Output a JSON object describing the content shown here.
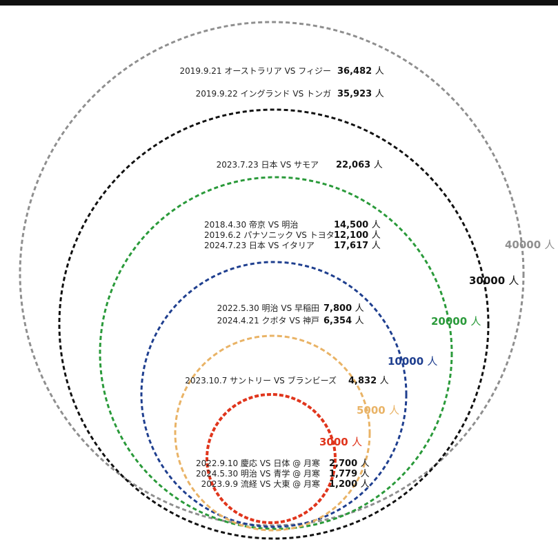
{
  "unit": "人",
  "rings": [
    {
      "label": "40000",
      "color": "#8f8f8f"
    },
    {
      "label": "30000",
      "color": "#111111"
    },
    {
      "label": "20000",
      "color": "#2a9a3a"
    },
    {
      "label": "10000",
      "color": "#1f3f8f"
    },
    {
      "label": "5000",
      "color": "#e9b366"
    },
    {
      "label": "3000",
      "color": "#e0351c"
    }
  ],
  "events": [
    {
      "label": "2019.9.21 オーストラリア VS フィジー",
      "count": "36,482"
    },
    {
      "label": "2019.9.22 イングランド VS トンガ",
      "count": "35,923"
    },
    {
      "label": "2023.7.23 日本 VS サモア",
      "count": "22,063"
    },
    {
      "label": "2018.4.30  帝京 VS 明治",
      "count": "14,500"
    },
    {
      "label": "2019.6.2   パナソニック VS トヨタ",
      "count": "12,100"
    },
    {
      "label": "2024.7.23  日本 VS イタリア",
      "count": "17,617"
    },
    {
      "label": "2022.5.30 明治 VS 早稲田",
      "count": "7,800"
    },
    {
      "label": "2024.4.21 クボタ VS 神戸",
      "count": "6,354"
    },
    {
      "label": "2023.10.7 サントリー VS ブランビーズ",
      "count": "4,832"
    },
    {
      "label": "2022.9.10 慶応 VS 日体 @ 月寒",
      "count": "2,700"
    },
    {
      "label": "2024.5.30 明治 VS 青学 @ 月寒",
      "count": "1,779"
    },
    {
      "label": "2023.9.9  流経 VS 大東 @ 月寒",
      "count": "1,200"
    }
  ]
}
